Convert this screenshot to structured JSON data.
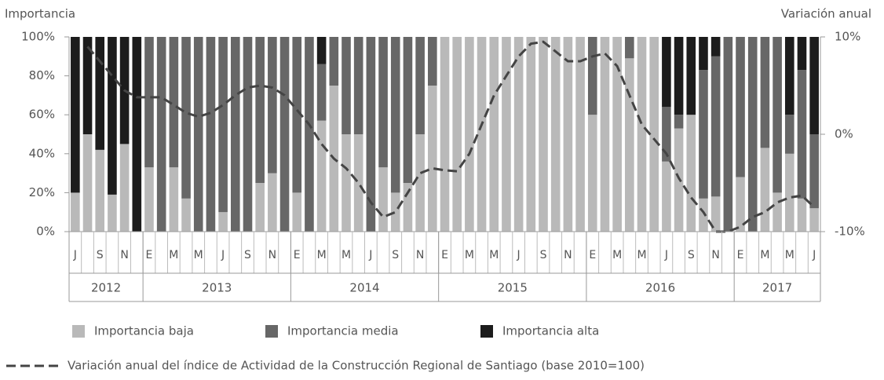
{
  "chart_data": {
    "type": "stacked_bar_line",
    "y_label": "Importancia",
    "y2_label": "Variación anual",
    "categories": [
      "J",
      null,
      "S",
      null,
      "N",
      null,
      "E",
      null,
      "M",
      null,
      "M",
      null,
      "J",
      null,
      "S",
      null,
      "N",
      null,
      "E",
      null,
      "M",
      null,
      "M",
      null,
      "J",
      null,
      "S",
      null,
      "N",
      null,
      "E",
      null,
      "M",
      null,
      "M",
      null,
      "J",
      null,
      "S",
      null,
      "N",
      null,
      "E",
      null,
      "M",
      null,
      "M",
      null,
      "J",
      null,
      "S",
      null,
      "N",
      null,
      "E",
      null,
      "M",
      null,
      "M",
      null,
      "J"
    ],
    "groups": [
      {
        "label": "2012",
        "count": 6
      },
      {
        "label": "2013",
        "count": 12
      },
      {
        "label": "2014",
        "count": 12
      },
      {
        "label": "2015",
        "count": 12
      },
      {
        "label": "2016",
        "count": 12
      },
      {
        "label": "2017",
        "count": 7
      }
    ],
    "series": [
      {
        "name": "Importancia baja",
        "color": "#b9b9b9",
        "values": [
          20,
          50,
          42,
          19,
          45,
          0,
          33,
          0,
          33,
          17,
          0,
          0,
          10,
          0,
          0,
          25,
          30,
          0,
          20,
          0,
          57,
          75,
          50,
          50,
          0,
          33,
          20,
          25,
          50,
          75,
          100,
          100,
          100,
          100,
          100,
          100,
          100,
          100,
          100,
          100,
          100,
          100,
          60,
          100,
          100,
          89,
          100,
          100,
          36,
          53,
          60,
          17,
          18,
          0,
          28,
          0,
          43,
          20,
          40,
          17,
          12
        ]
      },
      {
        "name": "Importancia media",
        "color": "#676767",
        "values": [
          0,
          0,
          0,
          0,
          0,
          0,
          67,
          100,
          67,
          83,
          100,
          100,
          90,
          100,
          100,
          75,
          70,
          100,
          80,
          100,
          29,
          25,
          50,
          50,
          100,
          67,
          80,
          75,
          50,
          25,
          0,
          0,
          0,
          0,
          0,
          0,
          0,
          0,
          0,
          0,
          0,
          0,
          40,
          0,
          0,
          11,
          0,
          0,
          28,
          7,
          0,
          66,
          72,
          100,
          72,
          100,
          57,
          80,
          20,
          66,
          38
        ]
      },
      {
        "name": "Importancia alta",
        "color": "#1c1c1c",
        "values": [
          80,
          50,
          58,
          81,
          55,
          100,
          0,
          0,
          0,
          0,
          0,
          0,
          0,
          0,
          0,
          0,
          0,
          0,
          0,
          0,
          14,
          0,
          0,
          0,
          0,
          0,
          0,
          0,
          0,
          0,
          0,
          0,
          0,
          0,
          0,
          0,
          0,
          0,
          0,
          0,
          0,
          0,
          0,
          0,
          0,
          0,
          0,
          0,
          36,
          40,
          40,
          17,
          10,
          0,
          0,
          0,
          0,
          0,
          40,
          17,
          50
        ]
      },
      {
        "name": "Variación anual del índice de Actividad de la Construcción Regional de Santiago (base 2010=100)",
        "color": "#444444",
        "axis": "y2",
        "dashed": true,
        "values": [
          null,
          9,
          7.5,
          6,
          4.5,
          3.8,
          3.8,
          3.8,
          3,
          2.2,
          1.8,
          2.2,
          3,
          4,
          4.8,
          5,
          4.8,
          4,
          2.5,
          1,
          -1,
          -2.5,
          -3.5,
          -5,
          -7,
          -8.5,
          -8,
          -6,
          -4,
          -3.5,
          -3.7,
          -3.8,
          -2,
          1,
          4,
          6,
          8,
          9.3,
          9.5,
          8.5,
          7.5,
          7.5,
          8,
          8.3,
          7,
          4,
          1,
          -0.5,
          -2,
          -4.5,
          -6.5,
          -8,
          -10,
          -10,
          -9.5,
          -8.5,
          -8,
          -7,
          -6.5,
          -6.3,
          -7.5
        ]
      }
    ],
    "ylim": [
      0,
      100
    ],
    "yticks": [
      {
        "value": 0,
        "label": "0%"
      },
      {
        "value": 20,
        "label": "20%"
      },
      {
        "value": 40,
        "label": "40%"
      },
      {
        "value": 60,
        "label": "60%"
      },
      {
        "value": 80,
        "label": "80%"
      },
      {
        "value": 100,
        "label": "100%"
      }
    ],
    "y2lim": [
      -10,
      10
    ],
    "y2ticks": [
      {
        "value": -10,
        "label": "-10%"
      },
      {
        "value": 0,
        "label": "0%"
      },
      {
        "value": 10,
        "label": "10%"
      }
    ]
  }
}
